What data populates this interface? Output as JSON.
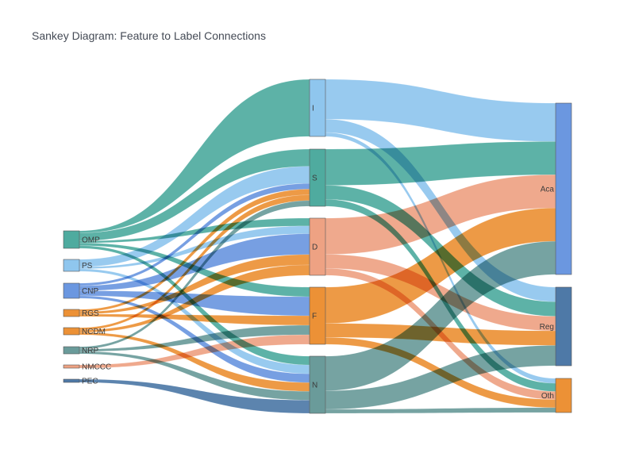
{
  "title": "Sankey Diagram: Feature to Label Connections",
  "colors": {
    "teal": "#4fab9f",
    "light_blue": "#8fc6ee",
    "blue": "#6b97e0",
    "orange": "#ec9136",
    "salmon": "#eea283",
    "slate": "#6a9b9a",
    "steel": "#4e79a7",
    "node_stroke": "#555555"
  },
  "nodes": {
    "features": [
      {
        "id": "OMP",
        "label": "OMP",
        "color": "teal"
      },
      {
        "id": "PS",
        "label": "PS",
        "color": "light_blue"
      },
      {
        "id": "CNP",
        "label": "CNP",
        "color": "blue"
      },
      {
        "id": "RGS",
        "label": "RGS",
        "color": "orange"
      },
      {
        "id": "NCDM",
        "label": "NCDM",
        "color": "orange"
      },
      {
        "id": "NRP",
        "label": "NRP",
        "color": "slate"
      },
      {
        "id": "NMCCC",
        "label": "NMCCC",
        "color": "salmon"
      },
      {
        "id": "PEC",
        "label": "PEC",
        "color": "steel"
      }
    ],
    "middle": [
      {
        "id": "I",
        "label": "I",
        "color": "light_blue"
      },
      {
        "id": "S",
        "label": "S",
        "color": "teal"
      },
      {
        "id": "D",
        "label": "D",
        "color": "salmon"
      },
      {
        "id": "F",
        "label": "F",
        "color": "orange"
      },
      {
        "id": "N",
        "label": "N",
        "color": "slate"
      }
    ],
    "labels": [
      {
        "id": "Aca",
        "label": "Aca",
        "color": "blue"
      },
      {
        "id": "Reg",
        "label": "Reg",
        "color": "steel"
      },
      {
        "id": "Oth",
        "label": "Oth",
        "color": "orange"
      }
    ]
  },
  "links": [
    {
      "source": "OMP",
      "target": "I",
      "value": 1.5,
      "color": "teal"
    },
    {
      "source": "OMP",
      "target": "S",
      "value": 6,
      "color": "teal"
    },
    {
      "source": "OMP",
      "target": "D",
      "value": 1.5,
      "color": "teal"
    },
    {
      "source": "OMP",
      "target": "F",
      "value": 2,
      "color": "teal"
    },
    {
      "source": "OMP",
      "target": "N",
      "value": 2,
      "color": "teal"
    },
    {
      "source": "PS",
      "target": "S",
      "value": 6,
      "color": "light_blue"
    },
    {
      "source": "PS",
      "target": "D",
      "value": 1.5,
      "color": "light_blue"
    },
    {
      "source": "PS",
      "target": "N",
      "value": 2,
      "color": "light_blue"
    },
    {
      "source": "CNP",
      "target": "S",
      "value": 2,
      "color": "blue"
    },
    {
      "source": "CNP",
      "target": "D",
      "value": 4,
      "color": "blue"
    },
    {
      "source": "CNP",
      "target": "F",
      "value": 4,
      "color": "blue"
    },
    {
      "source": "CNP",
      "target": "N",
      "value": 2,
      "color": "blue"
    },
    {
      "source": "RGS",
      "target": "S",
      "value": 2,
      "color": "orange"
    },
    {
      "source": "RGS",
      "target": "D",
      "value": 2,
      "color": "orange"
    },
    {
      "source": "RGS",
      "target": "F",
      "value": 2,
      "color": "orange"
    },
    {
      "source": "NCDM",
      "target": "S",
      "value": 2,
      "color": "orange"
    },
    {
      "source": "NCDM",
      "target": "D",
      "value": 2,
      "color": "orange"
    },
    {
      "source": "NCDM",
      "target": "N",
      "value": 2,
      "color": "orange"
    },
    {
      "source": "NRP",
      "target": "S",
      "value": 2,
      "color": "slate"
    },
    {
      "source": "NRP",
      "target": "F",
      "value": 2,
      "color": "slate"
    },
    {
      "source": "NRP",
      "target": "N",
      "value": 2,
      "color": "slate"
    },
    {
      "source": "NMCCC",
      "target": "F",
      "value": 2,
      "color": "salmon"
    },
    {
      "source": "PEC",
      "target": "N",
      "value": 3,
      "color": "steel"
    },
    {
      "source": "I",
      "target": "Aca",
      "value": 30,
      "color": "light_blue"
    },
    {
      "source": "I",
      "target": "Reg",
      "value": 10,
      "color": "light_blue"
    },
    {
      "source": "I",
      "target": "Oth",
      "value": 3,
      "color": "light_blue"
    },
    {
      "source": "S",
      "target": "Aca",
      "value": 26,
      "color": "teal"
    },
    {
      "source": "S",
      "target": "Reg",
      "value": 10,
      "color": "teal"
    },
    {
      "source": "S",
      "target": "Oth",
      "value": 5,
      "color": "teal"
    },
    {
      "source": "D",
      "target": "Aca",
      "value": 26,
      "color": "salmon"
    },
    {
      "source": "D",
      "target": "Reg",
      "value": 10,
      "color": "salmon"
    },
    {
      "source": "D",
      "target": "Oth",
      "value": 5,
      "color": "salmon"
    },
    {
      "source": "F",
      "target": "Aca",
      "value": 26,
      "color": "orange"
    },
    {
      "source": "F",
      "target": "Reg",
      "value": 10,
      "color": "orange"
    },
    {
      "source": "F",
      "target": "Oth",
      "value": 5,
      "color": "orange"
    },
    {
      "source": "N",
      "target": "Aca",
      "value": 26,
      "color": "slate"
    },
    {
      "source": "N",
      "target": "Reg",
      "value": 14,
      "color": "slate"
    },
    {
      "source": "N",
      "target": "Oth",
      "value": 3,
      "color": "slate"
    }
  ]
}
